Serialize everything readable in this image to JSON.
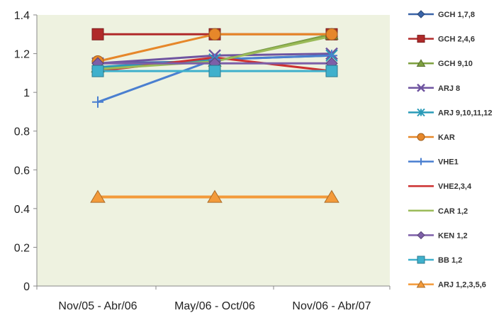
{
  "chart_data": {
    "type": "line",
    "title": "",
    "xlabel": "",
    "ylabel": "",
    "categories": [
      "Nov/05 - Abr/06",
      "May/06 - Oct/06",
      "Nov/06 - Abr/07"
    ],
    "ylim": [
      0,
      1.4
    ],
    "yticks": [
      "0",
      "0.2",
      "0.4",
      "0.6",
      "0.8",
      "1",
      "1.2",
      "1.4"
    ],
    "grid": false,
    "legend": "right",
    "plot_background": "#eef2e0",
    "series": [
      {
        "name": "GCH 1,7,8",
        "values": [
          1.15,
          1.16,
          1.3
        ],
        "color": "#3a64a8",
        "marker": "diamond",
        "width": 3
      },
      {
        "name": "GCH 2,4,6",
        "values": [
          1.3,
          1.3,
          1.3
        ],
        "color": "#b02a2a",
        "marker": "square",
        "width": 3
      },
      {
        "name": "GCH 9,10",
        "values": [
          1.13,
          1.16,
          1.3
        ],
        "color": "#7ea040",
        "marker": "triangle",
        "width": 3
      },
      {
        "name": "ARJ 8",
        "values": [
          1.15,
          1.19,
          1.2
        ],
        "color": "#6f54a0",
        "marker": "x",
        "width": 3
      },
      {
        "name": "ARJ 9,10,11,12",
        "values": [
          1.13,
          1.17,
          1.19
        ],
        "color": "#2a9bb8",
        "marker": "star",
        "width": 3
      },
      {
        "name": "KAR",
        "values": [
          1.16,
          1.3,
          1.3
        ],
        "color": "#e6872a",
        "marker": "circle",
        "width": 3
      },
      {
        "name": "VHE1",
        "values": [
          0.95,
          1.17,
          1.19
        ],
        "color": "#4a7fd0",
        "marker": "plus",
        "width": 3
      },
      {
        "name": "VHE2,3,4",
        "values": [
          1.11,
          1.18,
          1.11
        ],
        "color": "#cc3030",
        "marker": "none",
        "width": 3
      },
      {
        "name": "CAR 1,2",
        "values": [
          1.12,
          1.16,
          1.29
        ],
        "color": "#9bbb59",
        "marker": "none",
        "width": 3
      },
      {
        "name": "KEN 1,2",
        "values": [
          1.15,
          1.15,
          1.15
        ],
        "color": "#7d5fa8",
        "marker": "diamond",
        "width": 3
      },
      {
        "name": "BB 1,2",
        "values": [
          1.11,
          1.11,
          1.11
        ],
        "color": "#3fb0cc",
        "marker": "square",
        "width": 3
      },
      {
        "name": "ARJ 1,2,3,5,6",
        "values": [
          0.46,
          0.46,
          0.46
        ],
        "color": "#f39a3a",
        "marker": "triangle",
        "width": 4
      }
    ]
  }
}
